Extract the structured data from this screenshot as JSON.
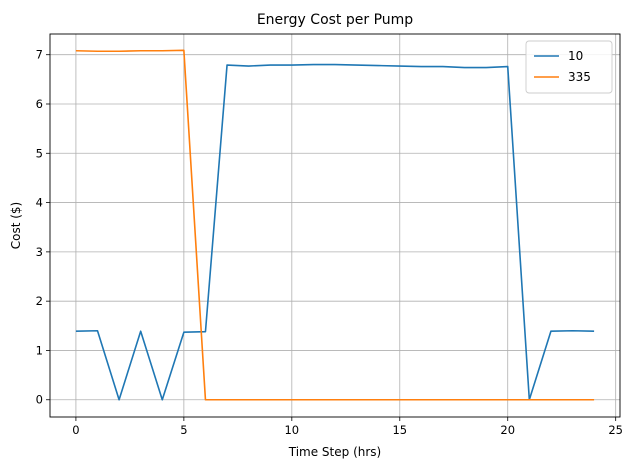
{
  "chart_data": {
    "type": "line",
    "title": "Energy Cost per Pump",
    "xlabel": "Time Step (hrs)",
    "ylabel": "Cost ($)",
    "xlim": [
      -1.2,
      25.2
    ],
    "ylim": [
      -0.35,
      7.42
    ],
    "xticks": [
      0,
      5,
      10,
      15,
      20,
      25
    ],
    "xtick_labels": [
      "0",
      "5",
      "10",
      "15",
      "20",
      "25"
    ],
    "yticks": [
      0,
      1,
      2,
      3,
      4,
      5,
      6,
      7
    ],
    "ytick_labels": [
      "0",
      "1",
      "2",
      "3",
      "4",
      "5",
      "6",
      "7"
    ],
    "grid": true,
    "legend": "top-right",
    "x": [
      0,
      1,
      2,
      3,
      4,
      5,
      6,
      7,
      8,
      9,
      10,
      11,
      12,
      13,
      14,
      15,
      16,
      17,
      18,
      19,
      20,
      21,
      22,
      23,
      24
    ],
    "series": [
      {
        "name": "10",
        "color": "#1f77b4",
        "values": [
          1.39,
          1.4,
          0.0,
          1.39,
          0.0,
          1.37,
          1.38,
          6.79,
          6.77,
          6.79,
          6.79,
          6.8,
          6.8,
          6.79,
          6.78,
          6.77,
          6.76,
          6.76,
          6.74,
          6.74,
          6.76,
          0.0,
          1.39,
          1.4,
          1.39
        ]
      },
      {
        "name": "335",
        "color": "#ff7f0e",
        "values": [
          7.08,
          7.07,
          7.07,
          7.08,
          7.08,
          7.09,
          0.0,
          0.0,
          0.0,
          0.0,
          0.0,
          0.0,
          0.0,
          0.0,
          0.0,
          0.0,
          0.0,
          0.0,
          0.0,
          0.0,
          0.0,
          0.0,
          0.0,
          0.0,
          0.0
        ]
      }
    ]
  }
}
